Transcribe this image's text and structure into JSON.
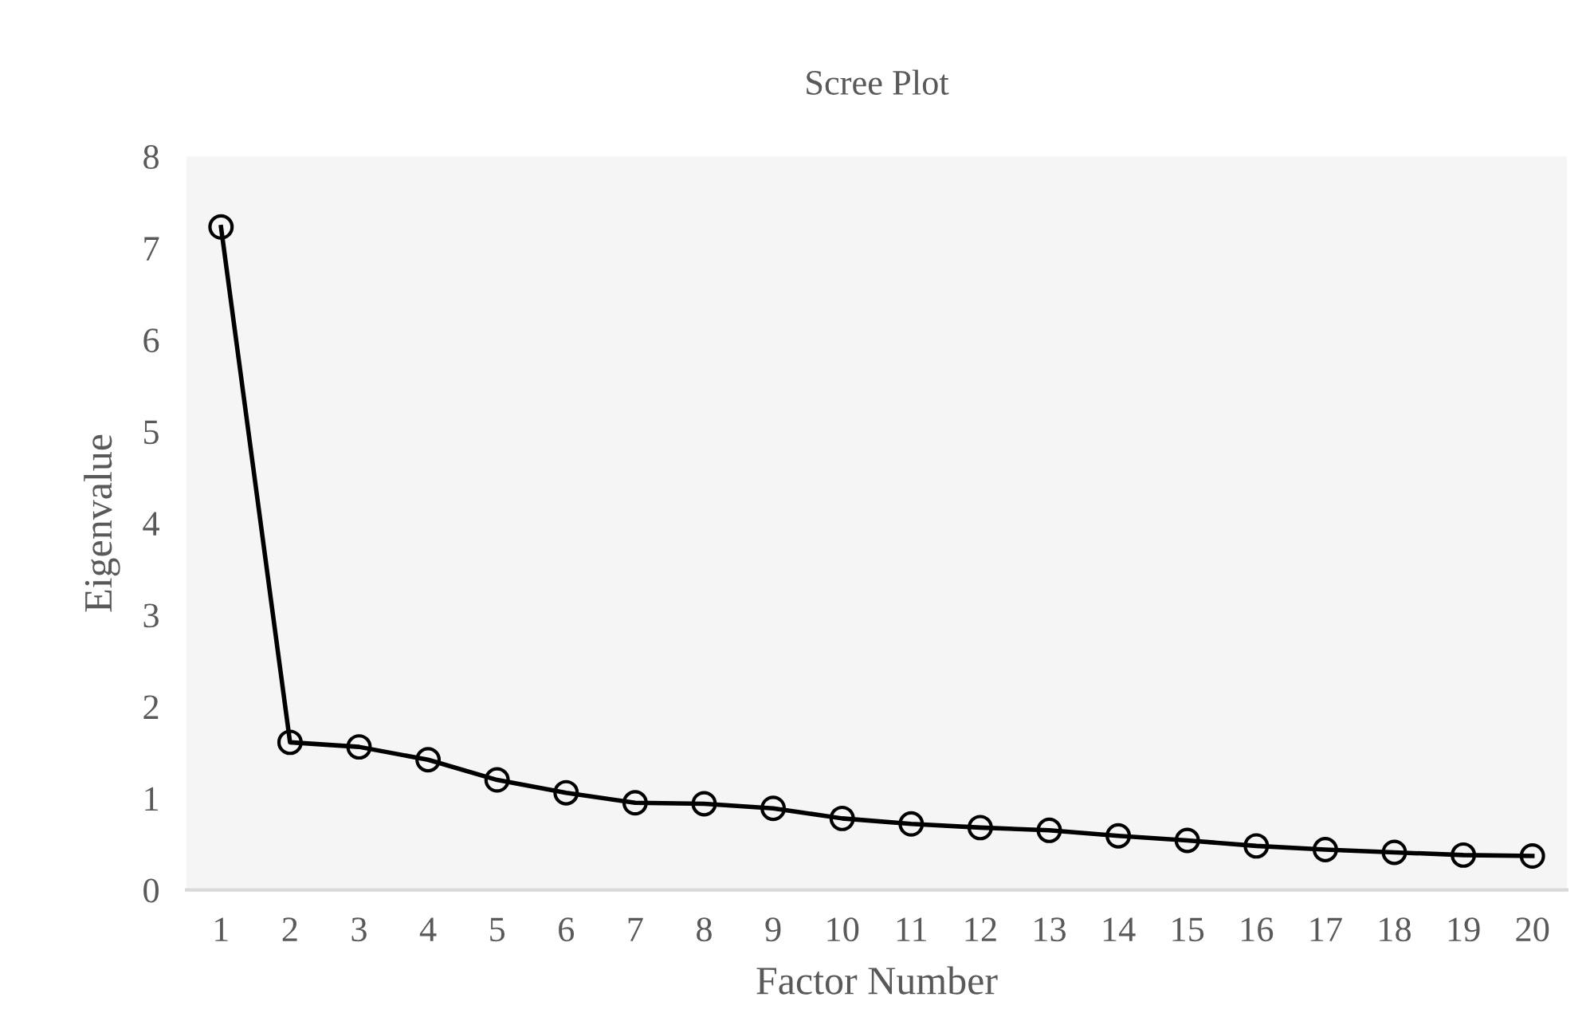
{
  "chart_data": {
    "type": "line",
    "title": "Scree Plot",
    "xlabel": "Factor Number",
    "ylabel": "Eigenvalue",
    "categories": [
      "1",
      "2",
      "3",
      "4",
      "5",
      "6",
      "7",
      "8",
      "9",
      "10",
      "11",
      "12",
      "13",
      "14",
      "15",
      "16",
      "17",
      "18",
      "19",
      "20"
    ],
    "series": [
      {
        "color": "#000000",
        "values": [
          7.23,
          1.61,
          1.56,
          1.42,
          1.2,
          1.06,
          0.95,
          0.94,
          0.89,
          0.78,
          0.72,
          0.68,
          0.65,
          0.59,
          0.54,
          0.48,
          0.44,
          0.41,
          0.38,
          0.37
        ]
      }
    ],
    "ylim": [
      0,
      8
    ],
    "yticks": [
      0,
      1,
      2,
      3,
      4,
      5,
      6,
      7,
      8
    ],
    "grid": false,
    "legend": false,
    "marker": "circle",
    "line_style": "solid"
  }
}
